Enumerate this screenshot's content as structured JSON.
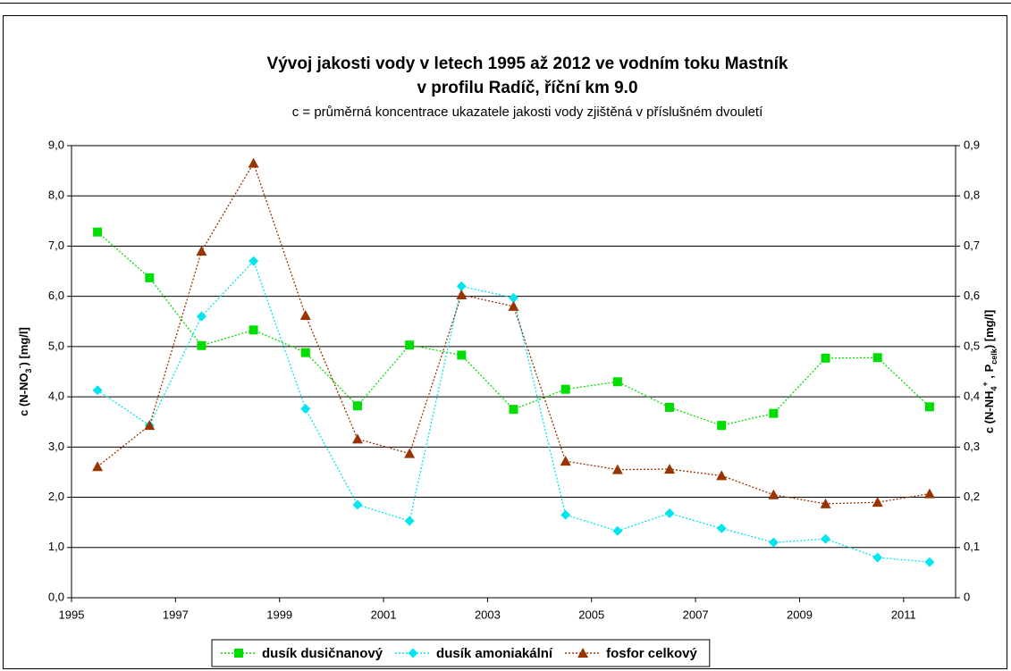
{
  "chart_data": {
    "type": "line",
    "title": [
      "Vývoj jakosti vody v letech 1995 až 2012 ve vodním toku Mastník",
      "v profilu Radíč, říční km 9.0"
    ],
    "subtitle": "c = průměrná koncentrace ukazatele jakosti vody zjištěná v příslušném dvouletí",
    "y_label": [
      {
        "text": "c (N-NO"
      },
      {
        "text": "3",
        "script": "sub"
      },
      {
        "text": "-",
        "script": "super"
      },
      {
        "text": ") [mg/l]"
      }
    ],
    "y2_label": [
      {
        "text": "c (N-NH"
      },
      {
        "text": "4",
        "script": "sub"
      },
      {
        "text": "+",
        "script": "super"
      },
      {
        "text": " , P"
      },
      {
        "text": "celk",
        "script": "sub"
      },
      {
        "text": ") [mg/l]"
      }
    ],
    "x": [
      1995.5,
      1996.5,
      1997.5,
      1998.5,
      1999.5,
      2000.5,
      2001.5,
      2002.5,
      2003.5,
      2004.5,
      2005.5,
      2006.5,
      2007.5,
      2008.5,
      2009.5,
      2010.5,
      2011.5
    ],
    "xlim": [
      1995,
      2012
    ],
    "xticks": [
      1995,
      1997,
      1999,
      2001,
      2003,
      2005,
      2007,
      2009,
      2011
    ],
    "ylim": [
      0,
      9
    ],
    "yticks": [
      {
        "value": 0,
        "label": "0,0"
      },
      {
        "value": 1,
        "label": "1,0"
      },
      {
        "value": 2,
        "label": "2,0"
      },
      {
        "value": 3,
        "label": "3,0"
      },
      {
        "value": 4,
        "label": "4,0"
      },
      {
        "value": 5,
        "label": "5,0"
      },
      {
        "value": 6,
        "label": "6,0"
      },
      {
        "value": 7,
        "label": "7,0"
      },
      {
        "value": 8,
        "label": "8,0"
      },
      {
        "value": 9,
        "label": "9,0"
      }
    ],
    "y2lim": [
      0,
      0.9
    ],
    "y2ticks": [
      0,
      {
        "value": 0.1,
        "label": "0,1"
      },
      {
        "value": 0.2,
        "label": "0,2"
      },
      {
        "value": 0.3,
        "label": "0,3"
      },
      {
        "value": 0.4,
        "label": "0,4"
      },
      {
        "value": 0.5,
        "label": "0,5"
      },
      {
        "value": 0.6,
        "label": "0,6"
      },
      {
        "value": 0.7,
        "label": "0,7"
      },
      {
        "value": 0.8,
        "label": "0,8"
      },
      {
        "value": 0.9,
        "label": "0,9"
      }
    ],
    "grid": true,
    "legend": "bottom",
    "series": [
      {
        "name": "dusík dusičnanový",
        "color": "#00dd00",
        "marker": "square",
        "values": [
          7.28,
          6.37,
          5.02,
          5.33,
          4.88,
          3.82,
          5.03,
          4.83,
          3.75,
          4.15,
          4.3,
          3.79,
          3.43,
          3.67,
          4.77,
          4.78,
          3.8
        ]
      },
      {
        "name": "dusík amoniakální",
        "color": "#00e5ee",
        "marker": "diamond",
        "axis": "y2",
        "values": [
          0.413,
          0.343,
          0.56,
          0.67,
          0.376,
          0.185,
          0.153,
          0.62,
          0.597,
          0.165,
          0.133,
          0.168,
          0.138,
          0.11,
          0.117,
          0.08,
          0.071
        ]
      },
      {
        "name": "fosfor celkový",
        "color": "#993300",
        "marker": "triangle",
        "axis": "y2",
        "values": [
          0.261,
          0.343,
          0.69,
          0.865,
          0.562,
          0.316,
          0.287,
          0.603,
          0.58,
          0.272,
          0.255,
          0.256,
          0.243,
          0.205,
          0.187,
          0.19,
          0.207
        ]
      }
    ]
  }
}
